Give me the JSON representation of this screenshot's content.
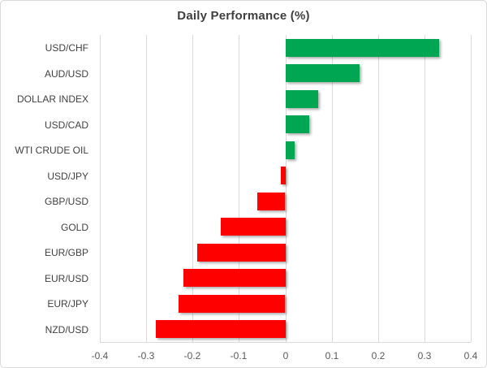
{
  "chart_data": {
    "type": "bar",
    "orientation": "horizontal",
    "title": "Daily Performance (%)",
    "categories": [
      "USD/CHF",
      "AUD/USD",
      "DOLLAR INDEX",
      "USD/CAD",
      "WTI CRUDE OIL",
      "USD/JPY",
      "GBP/USD",
      "GOLD",
      "EUR/GBP",
      "EUR/USD",
      "EUR/JPY",
      "NZD/USD"
    ],
    "values": [
      0.33,
      0.16,
      0.07,
      0.05,
      0.02,
      -0.01,
      -0.06,
      -0.14,
      -0.19,
      -0.22,
      -0.23,
      -0.28
    ],
    "xlim": [
      -0.4,
      0.4
    ],
    "xticks": [
      -0.4,
      -0.3,
      -0.2,
      -0.1,
      0,
      0.1,
      0.2,
      0.3,
      0.4
    ],
    "xtick_labels": [
      "-0.4",
      "-0.3",
      "-0.2",
      "-0.1",
      "0",
      "0.1",
      "0.2",
      "0.3",
      "0.4"
    ],
    "grid": true,
    "legend": false,
    "colors": {
      "positive": "#00a651",
      "negative": "#fe0000",
      "gridline": "#d9d9d9",
      "axis_line": "#d9d9d9",
      "title_text": "#3f3f3f",
      "category_text": "#404040",
      "tick_text": "#595959",
      "frame_border": "#d9d9d9",
      "background": "#ffffff"
    }
  }
}
